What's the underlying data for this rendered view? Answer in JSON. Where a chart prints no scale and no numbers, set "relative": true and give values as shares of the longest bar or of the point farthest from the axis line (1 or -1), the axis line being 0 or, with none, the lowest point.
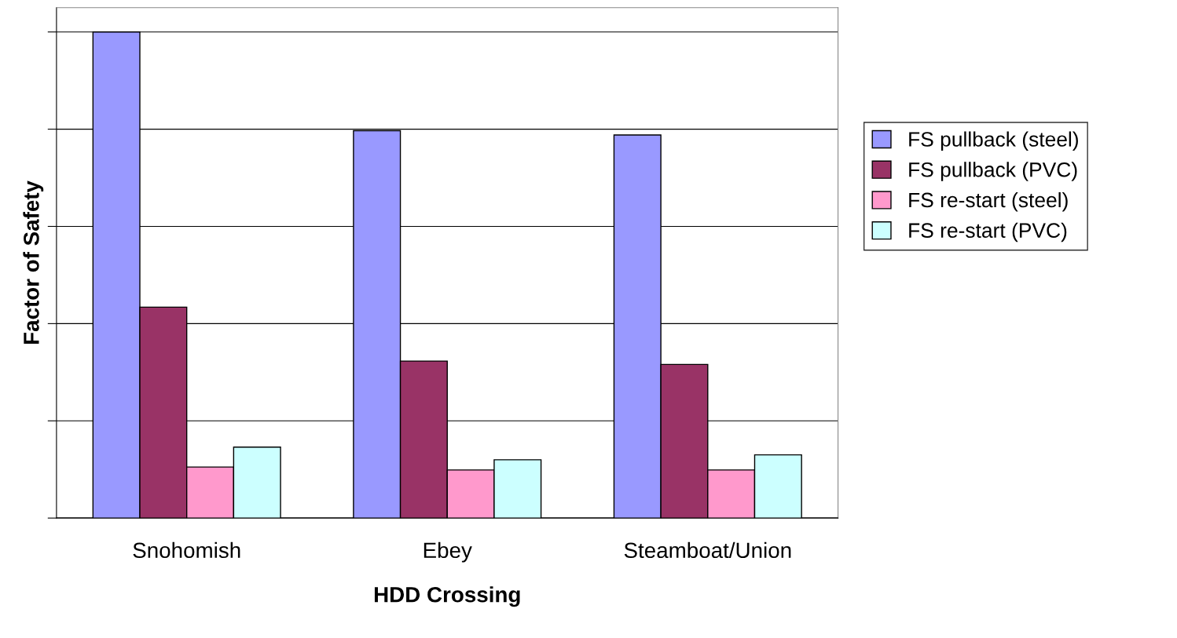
{
  "chart_data": {
    "type": "bar",
    "xlabel": "HDD Crossing",
    "ylabel": "Factor of Safety",
    "relative": true,
    "grid": "y",
    "legend": "right",
    "categories": [
      "Snohomish",
      "Ebey",
      "Steamboat/Union"
    ],
    "series": [
      {
        "name": "FS pullback (steel)",
        "color": "#9999ff",
        "values": [
          1,
          0.797,
          0.788
        ]
      },
      {
        "name": "FS pullback (PVC)",
        "color": "#993366",
        "values": [
          0.434,
          0.323,
          0.316
        ]
      },
      {
        "name": "FS re-start (steel)",
        "color": "#ff99cc",
        "values": [
          0.105,
          0.099,
          0.099
        ]
      },
      {
        "name": "FS re-start (PVC)",
        "color": "#ccffff",
        "values": [
          0.146,
          0.12,
          0.13
        ]
      }
    ]
  }
}
